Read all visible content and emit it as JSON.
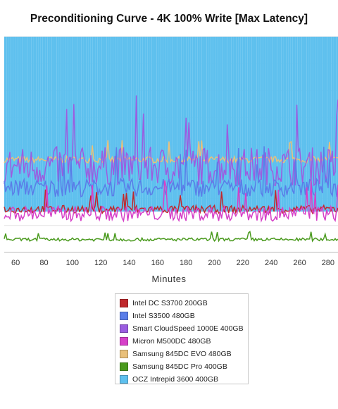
{
  "chart_data": {
    "type": "line",
    "title": "Preconditioning Curve - 4K 100% Write [Max Latency]",
    "xlabel": "Minutes",
    "ylabel": "",
    "x_ticks": [
      60,
      80,
      100,
      120,
      140,
      160,
      180,
      200,
      220,
      240,
      260,
      280
    ],
    "xlim": [
      52,
      287
    ],
    "ylim": [
      0,
      100
    ],
    "grid": true,
    "legend_position": "bottom",
    "series": [
      {
        "name": "Intel DC S3700 200GB",
        "color": "#c0282d",
        "level": 20,
        "spread": 3,
        "noise": 0.6
      },
      {
        "name": "Intel S3500 480GB",
        "color": "#5a7de8",
        "level": 30,
        "spread": 6,
        "noise": 0.7
      },
      {
        "name": "Smart CloudSpeed 1000E 400GB",
        "color": "#9b5de0",
        "level": 40,
        "spread": 10,
        "noise": 0.9
      },
      {
        "name": "Micron M500DC 480GB",
        "color": "#d640c8",
        "level": 18,
        "spread": 5,
        "noise": 0.7
      },
      {
        "name": "Samsung 845DC EVO 480GB",
        "color": "#e9c07a",
        "level": 43,
        "spread": 3,
        "noise": 0.5
      },
      {
        "name": "Samsung 845DC Pro 400GB",
        "color": "#4a9a1e",
        "level": 6,
        "spread": 1.2,
        "noise": 0.6
      },
      {
        "name": "OCZ Intrepid 3600 400GB",
        "color": "#5ec0ee",
        "level": 100,
        "spread": 0,
        "noise": 0
      }
    ]
  }
}
